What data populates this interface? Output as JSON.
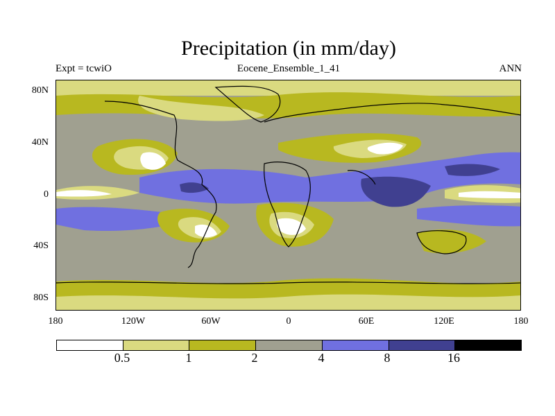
{
  "title": "Precipitation (in mm/day)",
  "header": {
    "left": "Expt = tcwiO",
    "center": "Eocene_Ensemble_1_41",
    "right": "ANN"
  },
  "map": {
    "projection": "equirectangular",
    "lon_range": [
      -180,
      180
    ],
    "lat_range": [
      -90,
      90
    ],
    "lat_ticks": [
      "80N",
      "40N",
      "0",
      "40S",
      "80S"
    ],
    "lon_ticks": [
      "180",
      "120W",
      "60W",
      "0",
      "60E",
      "120E",
      "180"
    ],
    "coastlines": true
  },
  "colorbar": {
    "colors": [
      "#ffffff",
      "#dada80",
      "#b8b820",
      "#a0a090",
      "#7070e0",
      "#404090",
      "#000000"
    ],
    "labels": [
      "0.5",
      "1",
      "2",
      "4",
      "8",
      "16"
    ],
    "units": "mm/day"
  }
}
